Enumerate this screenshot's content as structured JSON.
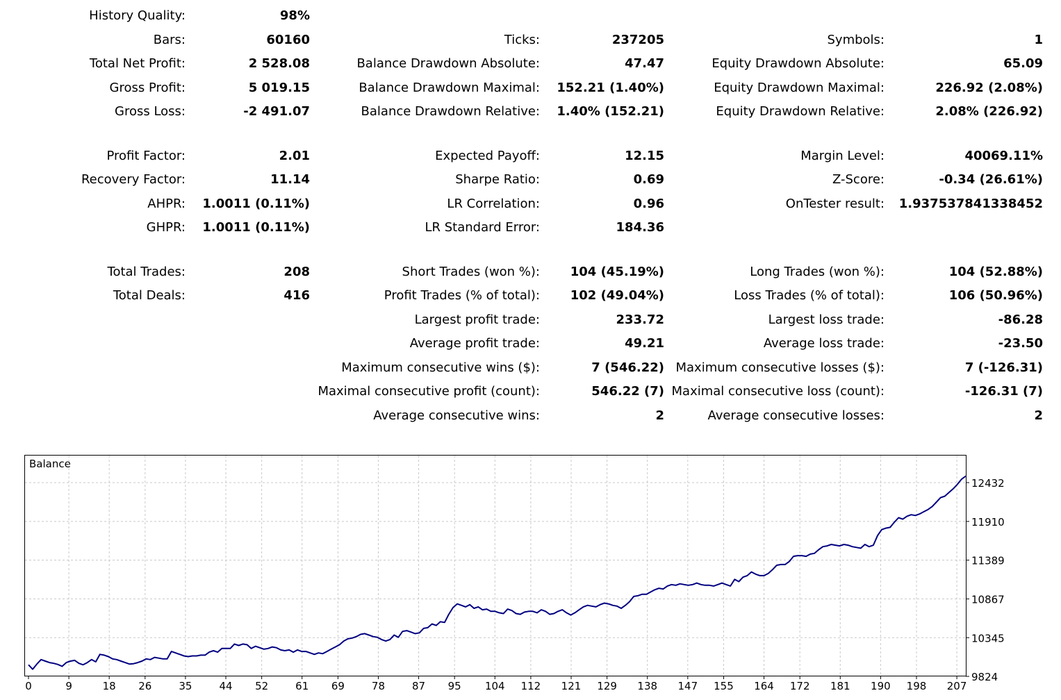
{
  "stats": {
    "col1": [
      {
        "label": "History Quality:",
        "value": "98%"
      },
      {
        "label": "Bars:",
        "value": "60160"
      },
      {
        "label": "Total Net Profit:",
        "value": "2 528.08"
      },
      {
        "label": "Gross Profit:",
        "value": "5 019.15"
      },
      {
        "label": "Gross Loss:",
        "value": "-2 491.07"
      },
      {
        "label": "Profit Factor:",
        "value": "2.01"
      },
      {
        "label": "Recovery Factor:",
        "value": "11.14"
      },
      {
        "label": "AHPR:",
        "value": "1.0011 (0.11%)"
      },
      {
        "label": "GHPR:",
        "value": "1.0011 (0.11%)"
      },
      {
        "label": "Total Trades:",
        "value": "208"
      },
      {
        "label": "Total Deals:",
        "value": "416"
      }
    ],
    "col2": [
      {
        "label": "Ticks:",
        "value": "237205"
      },
      {
        "label": "Balance Drawdown Absolute:",
        "value": "47.47"
      },
      {
        "label": "Balance Drawdown Maximal:",
        "value": "152.21 (1.40%)"
      },
      {
        "label": "Balance Drawdown Relative:",
        "value": "1.40% (152.21)"
      },
      {
        "label": "Expected Payoff:",
        "value": "12.15"
      },
      {
        "label": "Sharpe Ratio:",
        "value": "0.69"
      },
      {
        "label": "LR Correlation:",
        "value": "0.96"
      },
      {
        "label": "LR Standard Error:",
        "value": "184.36"
      },
      {
        "label": "Short Trades (won %):",
        "value": "104 (45.19%)"
      },
      {
        "label": "Profit Trades (% of total):",
        "value": "102 (49.04%)"
      },
      {
        "label": "Largest profit trade:",
        "value": "233.72"
      },
      {
        "label": "Average profit trade:",
        "value": "49.21"
      },
      {
        "label": "Maximum consecutive wins ($):",
        "value": "7 (546.22)"
      },
      {
        "label": "Maximal consecutive profit (count):",
        "value": "546.22 (7)"
      },
      {
        "label": "Average consecutive wins:",
        "value": "2"
      }
    ],
    "col3": [
      {
        "label": "Symbols:",
        "value": "1"
      },
      {
        "label": "Equity Drawdown Absolute:",
        "value": "65.09"
      },
      {
        "label": "Equity Drawdown Maximal:",
        "value": "226.92 (2.08%)"
      },
      {
        "label": "Equity Drawdown Relative:",
        "value": "2.08% (226.92)"
      },
      {
        "label": "Margin Level:",
        "value": "40069.11%"
      },
      {
        "label": "Z-Score:",
        "value": "-0.34 (26.61%)"
      },
      {
        "label": "OnTester result:",
        "value": "1.937537841338452"
      },
      {
        "label": "Long Trades (won %):",
        "value": "104 (52.88%)"
      },
      {
        "label": "Loss Trades (% of total):",
        "value": "106 (50.96%)"
      },
      {
        "label": "Largest loss trade:",
        "value": "-86.28"
      },
      {
        "label": "Average loss trade:",
        "value": "-23.50"
      },
      {
        "label": "Maximum consecutive losses ($):",
        "value": "7 (-126.31)"
      },
      {
        "label": "Maximal consecutive loss (count):",
        "value": "-126.31 (7)"
      },
      {
        "label": "Average consecutive losses:",
        "value": "2"
      }
    ]
  },
  "chart_data": {
    "type": "line",
    "title": "Balance",
    "xlabel": "",
    "ylabel": "",
    "x_ticks": [
      "0",
      "9",
      "18",
      "26",
      "35",
      "44",
      "52",
      "61",
      "69",
      "78",
      "87",
      "95",
      "104",
      "112",
      "121",
      "129",
      "138",
      "147",
      "155",
      "164",
      "172",
      "181",
      "190",
      "198",
      "207"
    ],
    "y_ticks": [
      "12432",
      "11910",
      "11389",
      "10867",
      "10345",
      "9824"
    ],
    "xlim": [
      0,
      209
    ],
    "ylim": [
      9824,
      12432
    ],
    "grid": true,
    "line_color": "#000080",
    "series": [
      {
        "values": [
          9980,
          9920,
          9990,
          10050,
          10030,
          10010,
          10000,
          9985,
          9960,
          10010,
          10030,
          10040,
          10000,
          9980,
          10010,
          10050,
          10020,
          10120,
          10110,
          10090,
          10060,
          10050,
          10030,
          10010,
          9990,
          9995,
          10010,
          10030,
          10060,
          10050,
          10080,
          10070,
          10060,
          10060,
          10160,
          10140,
          10120,
          10100,
          10090,
          10100,
          10100,
          10110,
          10110,
          10150,
          10170,
          10150,
          10200,
          10200,
          10200,
          10260,
          10240,
          10260,
          10250,
          10200,
          10230,
          10210,
          10190,
          10200,
          10220,
          10210,
          10180,
          10170,
          10180,
          10150,
          10180,
          10160,
          10160,
          10140,
          10120,
          10140,
          10130,
          10160,
          10190,
          10220,
          10250,
          10300,
          10330,
          10340,
          10360,
          10390,
          10400,
          10380,
          10360,
          10350,
          10320,
          10300,
          10320,
          10380,
          10350,
          10430,
          10440,
          10420,
          10400,
          10410,
          10470,
          10480,
          10530,
          10510,
          10560,
          10550,
          10660,
          10750,
          10800,
          10780,
          10760,
          10790,
          10740,
          10760,
          10720,
          10730,
          10700,
          10700,
          10680,
          10670,
          10730,
          10710,
          10670,
          10660,
          10690,
          10700,
          10700,
          10680,
          10720,
          10700,
          10660,
          10670,
          10700,
          10720,
          10680,
          10650,
          10680,
          10720,
          10760,
          10780,
          10770,
          10760,
          10790,
          10810,
          10800,
          10780,
          10770,
          10740,
          10780,
          10830,
          10900,
          10910,
          10930,
          10930,
          10960,
          10990,
          11010,
          11000,
          11040,
          11060,
          11050,
          11070,
          11060,
          11050,
          11060,
          11080,
          11060,
          11050,
          11050,
          11040,
          11060,
          11080,
          11060,
          11040,
          11130,
          11100,
          11160,
          11180,
          11230,
          11200,
          11180,
          11180,
          11210,
          11260,
          11320,
          11330,
          11330,
          11370,
          11440,
          11450,
          11450,
          11440,
          11470,
          11480,
          11530,
          11570,
          11580,
          11600,
          11590,
          11580,
          11600,
          11590,
          11570,
          11560,
          11550,
          11600,
          11570,
          11590,
          11720,
          11800,
          11820,
          11830,
          11900,
          11960,
          11940,
          11980,
          12000,
          11990,
          12010,
          12040,
          12070,
          12110,
          12170,
          12230,
          12250,
          12300,
          12350,
          12410,
          12480,
          12520
        ]
      }
    ]
  }
}
